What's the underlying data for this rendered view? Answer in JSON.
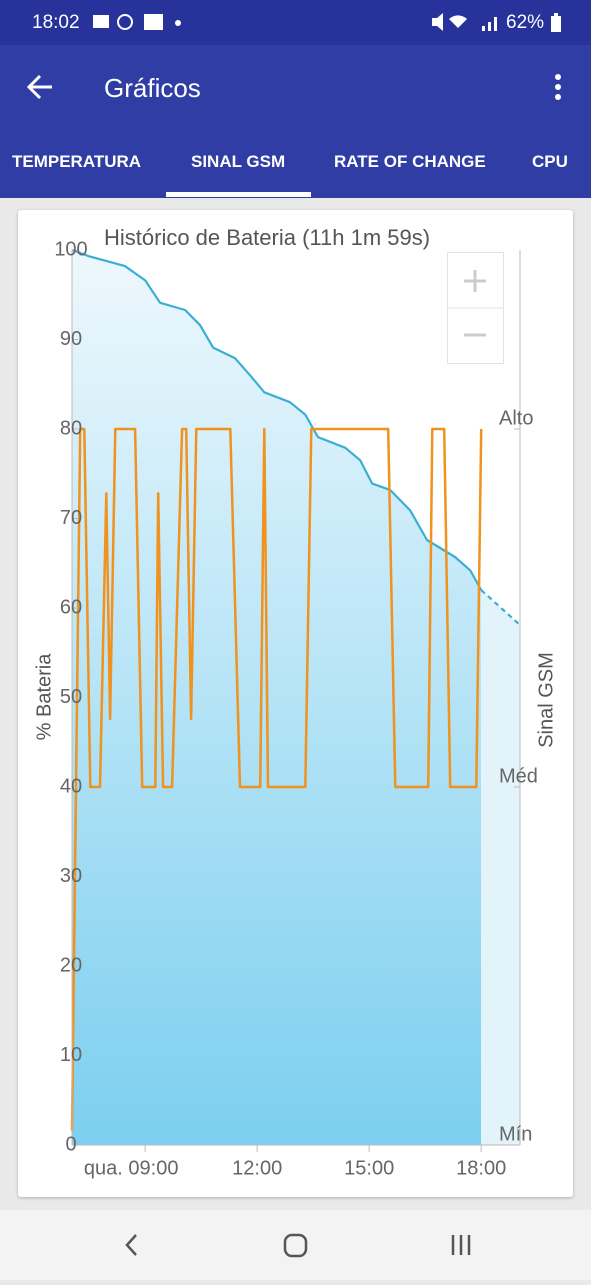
{
  "status_bar": {
    "time": "18:02",
    "battery": "62%"
  },
  "app_bar": {
    "title": "Gráficos"
  },
  "tabs": [
    "TEMPERATURA",
    "SINAL GSM",
    "RATE OF CHANGE",
    "CPU"
  ],
  "chart_data": {
    "type": "line",
    "title": "Histórico de Bateria (11h 1m 59s)",
    "y_label": "% Bateria",
    "y2_label": "Sinal GSM",
    "xlim": [
      7.04,
      19.04
    ],
    "xticks": [
      {
        "value": 9,
        "label": "qua. 09:00"
      },
      {
        "value": 12,
        "label": "12:00"
      },
      {
        "value": 15,
        "label": "15:00"
      },
      {
        "value": 18,
        "label": "18:00"
      }
    ],
    "ylim": [
      0,
      100
    ],
    "yticks": [
      0,
      10,
      20,
      30,
      40,
      50,
      60,
      70,
      80,
      90,
      100
    ],
    "y2lim": [
      0,
      2.5
    ],
    "y2ticks": [
      {
        "value": 0,
        "label": "Mín"
      },
      {
        "value": 1,
        "label": "Méd"
      },
      {
        "value": 2,
        "label": "Alto"
      }
    ],
    "grid": false,
    "series": [
      {
        "color": "#3aafd3",
        "fill": "#7ccfef",
        "dashed": false,
        "x": [
          7.04,
          7.5,
          8.46,
          9.0,
          9.4,
          10.07,
          10.47,
          10.82,
          11.41,
          11.81,
          12.19,
          12.88,
          13.29,
          13.63,
          14.36,
          14.76,
          15.08,
          15.56,
          16.1,
          16.55,
          17.3,
          17.71,
          18.0
        ],
        "values": [
          100,
          99.3,
          98.2,
          96.6,
          94.1,
          93.3,
          91.6,
          89.1,
          87.9,
          86.0,
          84.1,
          83.0,
          81.6,
          79.1,
          77.9,
          76.5,
          73.9,
          73.2,
          70.9,
          67.6,
          65.7,
          64.2,
          62.0
        ]
      },
      {
        "color": "#3aafd3",
        "fill": "#e3f3fa",
        "dashed": true,
        "x": [
          18.0,
          19.04
        ],
        "values": [
          62.0,
          58.1
        ]
      },
      {
        "color": "#f0921e",
        "axis": "y2",
        "dashed": false,
        "x": [
          7.04,
          7.26,
          7.37,
          7.53,
          7.79,
          7.96,
          8.06,
          8.2,
          8.73,
          8.92,
          9.27,
          9.35,
          9.48,
          9.72,
          9.99,
          10.1,
          10.23,
          10.37,
          11.28,
          11.54,
          12.08,
          12.19,
          12.29,
          13.29,
          13.45,
          15.51,
          15.7,
          16.58,
          16.69,
          17.01,
          17.17,
          17.87,
          18.0
        ],
        "values": [
          0.04,
          2,
          2,
          1,
          1,
          1.82,
          1.19,
          2,
          2,
          1,
          1,
          1.82,
          1,
          1,
          2,
          2,
          1.19,
          2,
          2,
          1,
          1,
          2,
          1,
          1,
          2,
          2,
          1,
          1,
          2,
          2,
          1,
          1,
          2
        ]
      }
    ]
  }
}
